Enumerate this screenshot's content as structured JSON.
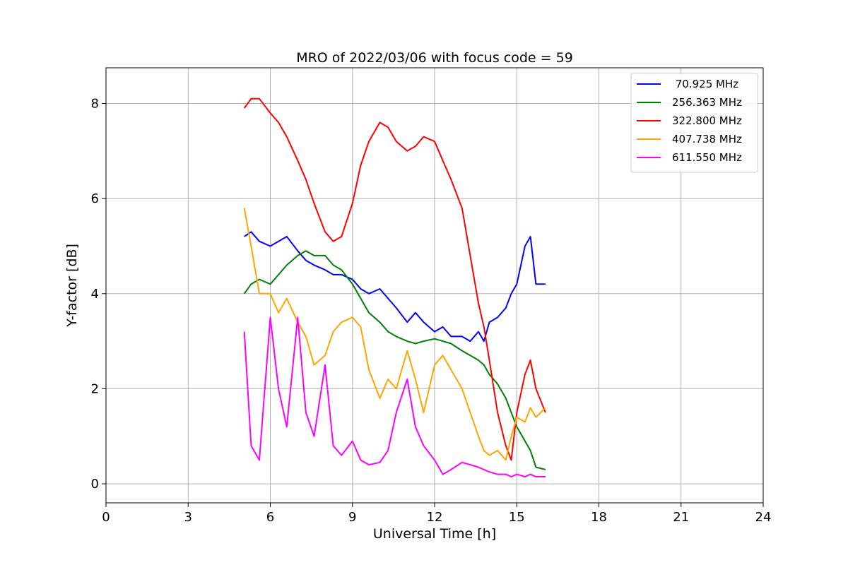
{
  "chart_data": {
    "type": "line",
    "title": "MRO of 2022/03/06 with focus code = 59",
    "xlabel": "Universal Time [h]",
    "ylabel": "Y-factor [dB]",
    "xlim": [
      0,
      24
    ],
    "ylim": [
      -0.4,
      8.75
    ],
    "xticks": [
      0,
      3,
      6,
      9,
      12,
      15,
      18,
      21,
      24
    ],
    "yticks": [
      0,
      2,
      4,
      6,
      8
    ],
    "grid": true,
    "legend_position": "top-right",
    "series": [
      {
        "name": " 70.925 MHz",
        "color": "#0000ff",
        "x": [
          5.05,
          5.3,
          5.6,
          6.0,
          6.3,
          6.6,
          7.0,
          7.3,
          7.6,
          8.0,
          8.3,
          8.6,
          9.0,
          9.3,
          9.6,
          10.0,
          10.3,
          10.6,
          11.0,
          11.3,
          11.6,
          12.0,
          12.3,
          12.6,
          13.0,
          13.3,
          13.6,
          13.8,
          14.0,
          14.3,
          14.6,
          14.8,
          15.0,
          15.3,
          15.5,
          15.7,
          16.05
        ],
        "y": [
          5.2,
          5.3,
          5.1,
          5.0,
          5.1,
          5.2,
          4.9,
          4.7,
          4.6,
          4.5,
          4.4,
          4.4,
          4.3,
          4.1,
          4.0,
          4.1,
          3.9,
          3.7,
          3.4,
          3.6,
          3.4,
          3.2,
          3.3,
          3.1,
          3.1,
          3.0,
          3.2,
          3.0,
          3.4,
          3.5,
          3.7,
          4.0,
          4.2,
          5.0,
          5.2,
          4.2,
          4.2
        ]
      },
      {
        "name": "256.363 MHz",
        "color": "#008000",
        "x": [
          5.05,
          5.3,
          5.6,
          6.0,
          6.3,
          6.6,
          7.0,
          7.3,
          7.6,
          8.0,
          8.3,
          8.6,
          9.0,
          9.3,
          9.6,
          10.0,
          10.3,
          10.6,
          11.0,
          11.3,
          11.6,
          12.0,
          12.3,
          12.6,
          13.0,
          13.3,
          13.6,
          13.8,
          14.0,
          14.3,
          14.6,
          14.8,
          15.0,
          15.3,
          15.5,
          15.7,
          16.05
        ],
        "y": [
          4.0,
          4.2,
          4.3,
          4.2,
          4.4,
          4.6,
          4.8,
          4.9,
          4.8,
          4.8,
          4.6,
          4.5,
          4.2,
          3.9,
          3.6,
          3.4,
          3.2,
          3.1,
          3.0,
          2.95,
          3.0,
          3.05,
          3.0,
          2.95,
          2.8,
          2.7,
          2.6,
          2.5,
          2.3,
          2.1,
          1.8,
          1.5,
          1.2,
          0.9,
          0.7,
          0.35,
          0.3
        ]
      },
      {
        "name": "322.800 MHz",
        "color": "#ff0000",
        "x": [
          5.05,
          5.3,
          5.6,
          6.0,
          6.3,
          6.6,
          7.0,
          7.3,
          7.6,
          8.0,
          8.3,
          8.6,
          9.0,
          9.3,
          9.6,
          10.0,
          10.3,
          10.6,
          11.0,
          11.3,
          11.6,
          12.0,
          12.3,
          12.6,
          13.0,
          13.3,
          13.6,
          13.8,
          14.0,
          14.3,
          14.6,
          14.8,
          15.0,
          15.3,
          15.5,
          15.7,
          16.05
        ],
        "y": [
          7.9,
          8.1,
          8.1,
          7.8,
          7.6,
          7.3,
          6.8,
          6.4,
          5.9,
          5.3,
          5.1,
          5.2,
          5.9,
          6.7,
          7.2,
          7.6,
          7.5,
          7.2,
          7.0,
          7.1,
          7.3,
          7.2,
          6.8,
          6.4,
          5.8,
          4.8,
          3.8,
          3.3,
          2.6,
          1.5,
          0.8,
          0.5,
          1.5,
          2.3,
          2.6,
          2.0,
          1.5
        ]
      },
      {
        "name": "407.738 MHz",
        "color": "#ffa500",
        "x": [
          5.05,
          5.3,
          5.6,
          6.0,
          6.3,
          6.6,
          7.0,
          7.3,
          7.6,
          8.0,
          8.3,
          8.6,
          9.0,
          9.3,
          9.6,
          10.0,
          10.3,
          10.6,
          11.0,
          11.3,
          11.6,
          12.0,
          12.3,
          12.6,
          13.0,
          13.3,
          13.6,
          13.8,
          14.0,
          14.3,
          14.6,
          14.8,
          15.0,
          15.3,
          15.5,
          15.7,
          16.05
        ],
        "y": [
          5.8,
          5.0,
          4.0,
          4.0,
          3.6,
          3.9,
          3.4,
          3.1,
          2.5,
          2.7,
          3.2,
          3.4,
          3.5,
          3.3,
          2.4,
          1.8,
          2.2,
          2.0,
          2.8,
          2.2,
          1.5,
          2.5,
          2.7,
          2.4,
          2.0,
          1.5,
          1.0,
          0.7,
          0.6,
          0.7,
          0.5,
          1.0,
          1.4,
          1.3,
          1.6,
          1.4,
          1.6
        ]
      },
      {
        "name": "611.550 MHz",
        "color": "#ff00ff",
        "x": [
          5.05,
          5.3,
          5.6,
          6.0,
          6.3,
          6.6,
          7.0,
          7.3,
          7.6,
          8.0,
          8.3,
          8.6,
          9.0,
          9.3,
          9.6,
          10.0,
          10.3,
          10.6,
          11.0,
          11.3,
          11.6,
          12.0,
          12.3,
          12.6,
          13.0,
          13.3,
          13.6,
          13.8,
          14.0,
          14.3,
          14.6,
          14.8,
          15.0,
          15.3,
          15.5,
          15.7,
          16.05
        ],
        "y": [
          3.2,
          0.8,
          0.5,
          3.5,
          2.0,
          1.2,
          3.5,
          1.5,
          1.0,
          2.5,
          0.8,
          0.6,
          0.9,
          0.5,
          0.4,
          0.45,
          0.7,
          1.5,
          2.2,
          1.2,
          0.8,
          0.5,
          0.2,
          0.3,
          0.45,
          0.4,
          0.35,
          0.3,
          0.25,
          0.2,
          0.2,
          0.15,
          0.2,
          0.15,
          0.2,
          0.15,
          0.15
        ]
      }
    ]
  }
}
